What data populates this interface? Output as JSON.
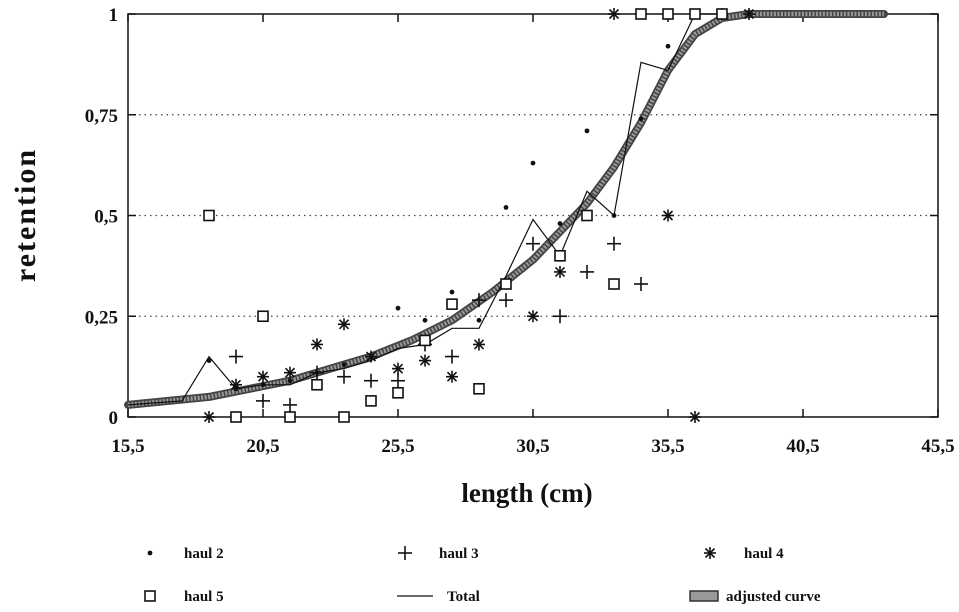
{
  "chart_data": {
    "type": "scatter",
    "title": "",
    "xlabel": "length (cm)",
    "ylabel": "retention",
    "xlim": [
      15.5,
      45.5
    ],
    "ylim": [
      0,
      1
    ],
    "x_ticks": [
      15.5,
      20.5,
      25.5,
      30.5,
      35.5,
      40.5,
      45.5
    ],
    "x_tick_labels": [
      "15,5",
      "20,5",
      "25,5",
      "30,5",
      "35,5",
      "40,5",
      "45,5"
    ],
    "y_ticks": [
      0,
      0.25,
      0.5,
      0.75,
      1
    ],
    "y_tick_labels": [
      "0",
      "0,25",
      "0,5",
      "0,75",
      "1"
    ],
    "grid": {
      "horizontal": "dotted",
      "vertical": false
    },
    "legend_position": "bottom",
    "series": [
      {
        "name": "haul 2",
        "marker": "dot",
        "x": [
          18.5,
          19.5,
          20.5,
          21.5,
          22.5,
          23.5,
          24.5,
          25.5,
          26.5,
          27.5,
          28.5,
          29.5,
          30.5,
          31.5,
          32.5,
          33.5,
          34.5,
          35.5,
          36.5,
          37.5
        ],
        "y": [
          0.14,
          0.07,
          0.08,
          0.09,
          0.11,
          0.13,
          0.15,
          0.27,
          0.24,
          0.31,
          0.24,
          0.52,
          0.63,
          0.48,
          0.71,
          0.5,
          0.74,
          0.92,
          1,
          1
        ]
      },
      {
        "name": "haul 3",
        "marker": "plus",
        "x": [
          19.5,
          20.5,
          21.5,
          22.5,
          23.5,
          24.5,
          25.5,
          26.5,
          27.5,
          28.5,
          29.5,
          30.5,
          31.5,
          32.5,
          33.5,
          34.5
        ],
        "y": [
          0.15,
          0.04,
          0.03,
          0.11,
          0.1,
          0.09,
          0.09,
          0.18,
          0.15,
          0.29,
          0.29,
          0.43,
          0.25,
          0.36,
          0.43,
          0.33
        ]
      },
      {
        "name": "haul 4",
        "marker": "asterisk",
        "x": [
          18.5,
          19.5,
          20.5,
          21.5,
          22.5,
          23.5,
          24.5,
          25.5,
          26.5,
          27.5,
          28.5,
          30.5,
          31.5,
          33.5,
          35.5,
          36.5,
          37.5,
          38.5
        ],
        "y": [
          0,
          0.08,
          0.1,
          0.11,
          0.18,
          0.23,
          0.15,
          0.12,
          0.14,
          0.1,
          0.18,
          0.25,
          0.36,
          1,
          0.5,
          0,
          1,
          1
        ]
      },
      {
        "name": "haul 5",
        "marker": "square",
        "x": [
          18.5,
          19.5,
          20.5,
          21.5,
          22.5,
          23.5,
          24.5,
          25.5,
          26.5,
          27.5,
          28.5,
          29.5,
          31.5,
          32.5,
          33.5,
          34.5,
          35.5,
          36.5,
          37.5
        ],
        "y": [
          0.5,
          0,
          0.25,
          0,
          0.08,
          0,
          0.04,
          0.06,
          0.19,
          0.28,
          0.07,
          0.33,
          0.4,
          0.5,
          0.33,
          1,
          1,
          1,
          1
        ]
      },
      {
        "name": "Total",
        "marker": "line",
        "x": [
          15.5,
          17.5,
          18.5,
          19.5,
          20.5,
          21.5,
          22.5,
          23.5,
          24.5,
          25.5,
          26.5,
          27.5,
          28.5,
          29.5,
          30.5,
          31.5,
          32.5,
          33.5,
          34.5,
          35.5,
          36.5,
          37.5
        ],
        "y": [
          0.03,
          0.04,
          0.15,
          0.07,
          0.08,
          0.08,
          0.11,
          0.12,
          0.14,
          0.17,
          0.18,
          0.22,
          0.22,
          0.35,
          0.49,
          0.4,
          0.56,
          0.5,
          0.88,
          0.86,
          1,
          1
        ]
      },
      {
        "name": "adjusted curve",
        "marker": "thick-line",
        "x": [
          15.5,
          17,
          18.5,
          20,
          21.5,
          23,
          24.5,
          26,
          27.5,
          29,
          30.5,
          31.5,
          32.5,
          33.5,
          34.5,
          35.5,
          36.5,
          37.5,
          38.5,
          40,
          42.5,
          43.5
        ],
        "y": [
          0.03,
          0.04,
          0.05,
          0.07,
          0.09,
          0.12,
          0.15,
          0.19,
          0.24,
          0.31,
          0.39,
          0.46,
          0.53,
          0.62,
          0.73,
          0.86,
          0.95,
          0.99,
          1,
          1,
          1,
          1
        ]
      }
    ]
  }
}
